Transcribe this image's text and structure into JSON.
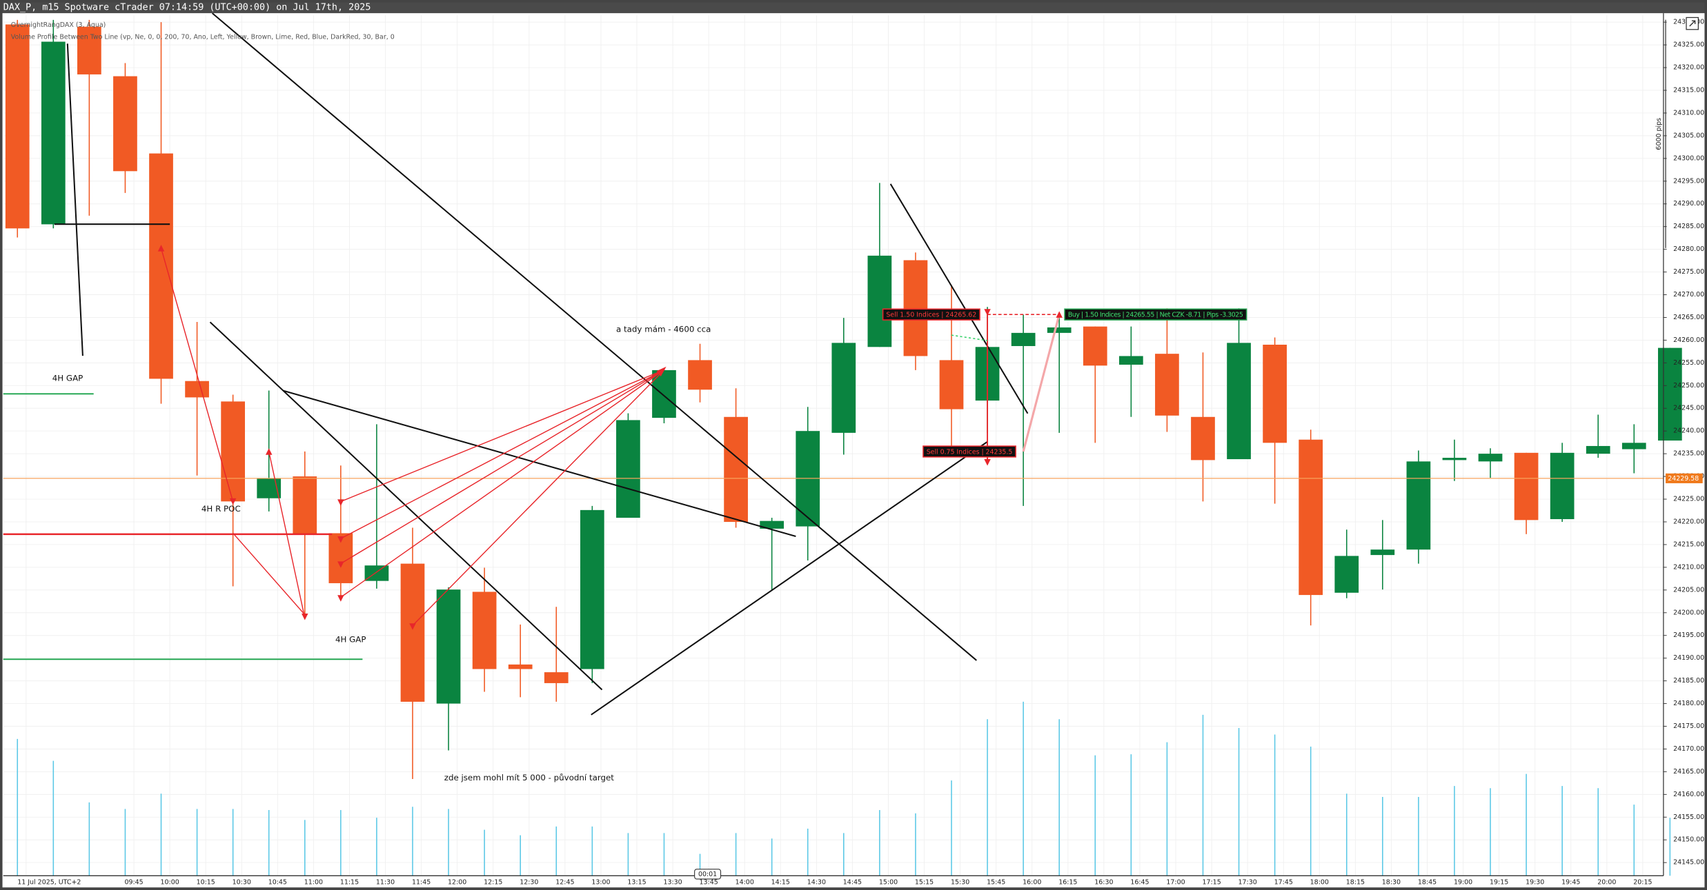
{
  "chart_data": {
    "type": "candlestick",
    "title": "DAX_P, m15 Spotware cTrader 07:14:59 (UTC+00:00) on Jul 17th, 2025",
    "indicators": [
      "OvernightRangDAX (3, Aqua)",
      "Volume Profile Between Two Line (vp, Ne, 0, 0, 200, 70, Ano, Left, Yellow, Brown, Lime, Red, Blue, DarkRed, 30, Bar, 0"
    ],
    "categories": [
      "11 Jul 2025, UTC+2",
      null,
      null,
      "09:45",
      "10:00",
      "10:15",
      "10:30",
      "10:45",
      "11:00",
      "11:15",
      "11:30",
      "11:45",
      "12:00",
      "12:15",
      "12:30",
      "12:45",
      "13:00",
      "13:15",
      "13:30",
      "13:45",
      "14:00",
      "14:15",
      "14:30",
      "14:45",
      "15:00",
      "15:15",
      "15:30",
      "15:45",
      "16:00",
      "16:15",
      "16:30",
      "16:45",
      "17:00",
      "17:15",
      "17:30",
      "17:45",
      "18:00",
      "18:15",
      "18:30",
      "18:45",
      "19:00",
      "19:15",
      "19:30",
      "19:45",
      "20:00",
      "20:15",
      null
    ],
    "open": [
      24329.5,
      24285.5,
      24329.0,
      24318.1,
      24301.1,
      24251.0,
      24246.5,
      24225.2,
      24230.0,
      24217.5,
      24207.0,
      24210.8,
      24180.0,
      24204.6,
      24188.6,
      24186.9,
      24187.6,
      24220.9,
      24242.9,
      24255.6,
      24243.1,
      24218.5,
      24219.0,
      24239.6,
      24258.5,
      24277.6,
      24255.6,
      24246.7,
      24258.7,
      24261.6,
      24263.0,
      24254.6,
      24257.0,
      24243.1,
      24233.8,
      24259.0,
      24238.1,
      24204.4,
      24212.7,
      24213.9,
      24233.6,
      24233.3,
      24235.2,
      24220.6,
      24235.0,
      24236.0,
      24237.9
    ],
    "high": [
      24330.5,
      24330.5,
      24330.5,
      24321.0,
      24330.0,
      24264.0,
      24248.0,
      24248.9,
      24235.5,
      24232.4,
      24241.5,
      24218.7,
      24205.6,
      24209.9,
      24197.4,
      24201.3,
      24223.5,
      24243.9,
      24253.9,
      24259.2,
      24249.4,
      24220.9,
      24245.3,
      24264.9,
      24294.6,
      24279.3,
      24272.1,
      24267.3,
      24265.6,
      24265.6,
      24263.0,
      24263.0,
      24267.0,
      24257.3,
      24267.0,
      24260.6,
      24240.3,
      24218.3,
      24220.4,
      24235.7,
      24238.1,
      24236.2,
      24235.2,
      24237.4,
      24243.6,
      24241.5,
      24258.3
    ],
    "low": [
      24282.6,
      24284.6,
      24287.4,
      24292.4,
      24246.0,
      24230.2,
      24205.8,
      24222.3,
      24199.6,
      24202.7,
      24205.3,
      24163.4,
      24169.7,
      24182.6,
      24181.4,
      24180.4,
      24184.5,
      24220.9,
      24241.7,
      24246.3,
      24218.7,
      24204.8,
      24211.5,
      24234.8,
      24258.5,
      24253.4,
      24236.2,
      24239.6,
      24223.5,
      24239.6,
      24237.4,
      24243.1,
      24239.8,
      24224.5,
      24233.8,
      24224.0,
      24197.2,
      24203.2,
      24205.1,
      24210.8,
      24229.0,
      24229.7,
      24217.3,
      24220.0,
      24234.1,
      24230.7,
      24237.9
    ],
    "close": [
      24284.6,
      24325.7,
      24318.5,
      24297.2,
      24251.5,
      24247.4,
      24224.5,
      24229.5,
      24217.3,
      24206.5,
      24210.4,
      24180.4,
      24205.1,
      24187.6,
      24187.6,
      24184.5,
      24222.6,
      24242.4,
      24253.4,
      24249.1,
      24220.0,
      24220.2,
      24240.0,
      24259.4,
      24278.6,
      24256.5,
      24244.8,
      24258.5,
      24261.6,
      24262.8,
      24254.4,
      24256.5,
      24243.4,
      24233.6,
      24259.4,
      24237.4,
      24203.9,
      24212.5,
      24213.9,
      24233.3,
      24234.1,
      24235.0,
      24220.4,
      24235.2,
      24236.7,
      24237.4,
      24258.3
    ],
    "volume": [
      125,
      105,
      67,
      61,
      75,
      61,
      61,
      60,
      51,
      60,
      53,
      63,
      61,
      42,
      37,
      45,
      45,
      39,
      39,
      20,
      39,
      34,
      43,
      39,
      60,
      57,
      87,
      143,
      159,
      143,
      110,
      111,
      122,
      147,
      135,
      129,
      118,
      75,
      72,
      72,
      82,
      80,
      93,
      82,
      80,
      65,
      53
    ],
    "up_color": "#0a8440",
    "down_color": "#f15a24",
    "volume_color": "#5bc8e6",
    "ylim": [
      24142.1,
      24331.5
    ],
    "yticks": [
      {
        "value": 24145,
        "label": "24145.00"
      },
      {
        "value": 24150,
        "label": "24150.00"
      },
      {
        "value": 24155,
        "label": "24155.00"
      },
      {
        "value": 24160,
        "label": "24160.00"
      },
      {
        "value": 24165,
        "label": "24165.00"
      },
      {
        "value": 24170,
        "label": "24170.00"
      },
      {
        "value": 24175,
        "label": "24175.00"
      },
      {
        "value": 24180,
        "label": "24180.00"
      },
      {
        "value": 24185,
        "label": "24185.00"
      },
      {
        "value": 24190,
        "label": "24190.00"
      },
      {
        "value": 24195,
        "label": "24195.00"
      },
      {
        "value": 24200,
        "label": "24200.00"
      },
      {
        "value": 24205,
        "label": "24205.00"
      },
      {
        "value": 24210,
        "label": "24210.00"
      },
      {
        "value": 24215,
        "label": "24215.00"
      },
      {
        "value": 24220,
        "label": "24220.00"
      },
      {
        "value": 24225,
        "label": "24225.00"
      },
      {
        "value": 24230,
        "label": "24230.00"
      },
      {
        "value": 24235,
        "label": "24235.00"
      },
      {
        "value": 24240,
        "label": "24240.00"
      },
      {
        "value": 24245,
        "label": "24245.00"
      },
      {
        "value": 24250,
        "label": "24250.00"
      },
      {
        "value": 24255,
        "label": "24255.00"
      },
      {
        "value": 24260,
        "label": "24260.00"
      },
      {
        "value": 24265,
        "label": "24265.00"
      },
      {
        "value": 24270,
        "label": "24270.00"
      },
      {
        "value": 24275,
        "label": "24275.00"
      },
      {
        "value": 24280,
        "label": "24280.00"
      },
      {
        "value": 24285,
        "label": "24285.00"
      },
      {
        "value": 24290,
        "label": "24290.00"
      },
      {
        "value": 24295,
        "label": "24295.00"
      },
      {
        "value": 24300,
        "label": "24300.00"
      },
      {
        "value": 24305,
        "label": "24305.00"
      },
      {
        "value": 24310,
        "label": "24310.00"
      },
      {
        "value": 24315,
        "label": "24315.00"
      },
      {
        "value": 24320,
        "label": "24320.00"
      },
      {
        "value": 24325,
        "label": "24325.00"
      },
      {
        "value": 24330,
        "label": "24330.00"
      }
    ],
    "grid": true,
    "last_price": {
      "value": 24229.58,
      "label": "24229.58"
    },
    "annotations": [
      "4H GAP",
      "4H R POC",
      "4H GAP",
      "a tady mám  - 4600 cca",
      "zde jsem mohl mít 5 000 - původní target"
    ],
    "trades": [
      "Sell 1.50 Indices | 24265.62",
      "Buy | 1.50 Indices | 24265.55 | Net CZK -8.71 | Pips -3.3025",
      "Sell 0.75 Indices | 24235.5"
    ],
    "ruler_label": "6000 pips",
    "time_marker": "00:01"
  }
}
